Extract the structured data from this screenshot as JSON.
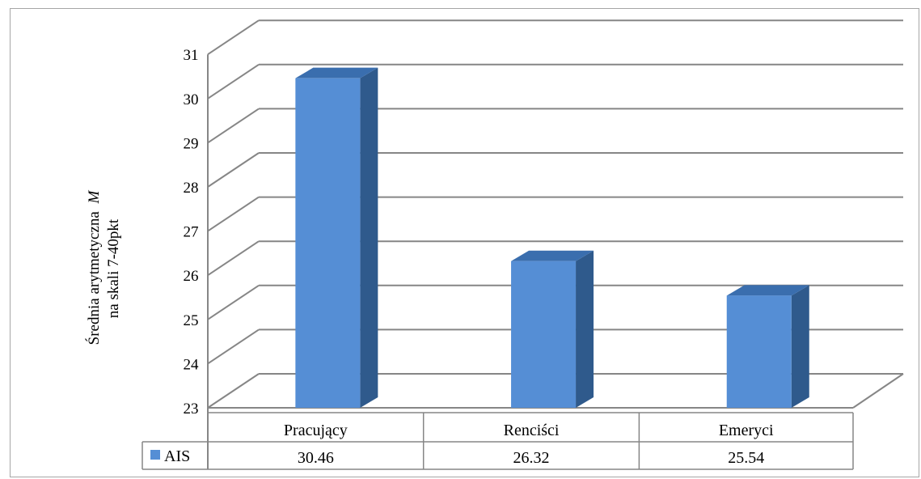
{
  "chart_data": {
    "type": "bar",
    "ylabel_line1": "Średnia arytmetyczna",
    "ylabel_var": "M",
    "ylabel_line2": "na skali 7-40pkt",
    "categories": [
      "Pracujący",
      "Renciści",
      "Emeryci"
    ],
    "series": [
      {
        "name": "AIS",
        "values": [
          30.46,
          26.32,
          25.54
        ],
        "value_labels": [
          "30.46",
          "26.32",
          "25.54"
        ]
      }
    ],
    "ylim": [
      23,
      31
    ],
    "yticks": [
      23,
      24,
      25,
      26,
      27,
      28,
      29,
      30,
      31
    ],
    "grid": true,
    "legend": "data-table",
    "colors": {
      "bar_front": "#558ed5",
      "bar_side": "#2f5a8c",
      "bar_top": "#3a6eae",
      "grid": "#868686"
    }
  }
}
